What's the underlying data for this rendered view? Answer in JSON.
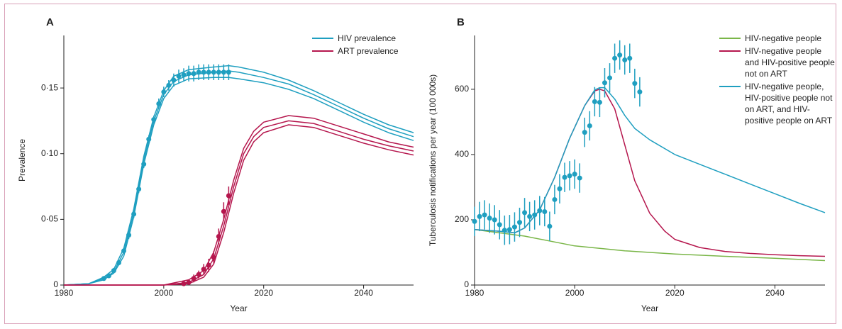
{
  "chart_data": [
    {
      "type": "line",
      "label": "A",
      "xlabel": "Year",
      "ylabel": "Prevalence",
      "xlim": [
        1980,
        2050
      ],
      "xticks": [
        1980,
        2000,
        2020,
        2040
      ],
      "ylim": [
        0,
        0.19
      ],
      "yticks": [
        0,
        {
          "value": 0.05,
          "label": "0·05"
        },
        {
          "value": 0.1,
          "label": "0·10"
        },
        {
          "value": 0.15,
          "label": "0·15"
        }
      ],
      "legend": "upper right",
      "series": [
        {
          "name": "HIV prevalence",
          "color": "#1f9fc0",
          "x": [
            1980,
            1985,
            1988,
            1990,
            1992,
            1994,
            1996,
            1998,
            2000,
            2002,
            2005,
            2010,
            2013,
            2015,
            2020,
            2025,
            2030,
            2035,
            2040,
            2045,
            2050
          ],
          "values": [
            0,
            0.001,
            0.005,
            0.01,
            0.025,
            0.055,
            0.095,
            0.125,
            0.145,
            0.155,
            0.16,
            0.162,
            0.163,
            0.162,
            0.158,
            0.153,
            0.145,
            0.136,
            0.127,
            0.119,
            0.113
          ]
        },
        {
          "color": "#1f9fc0",
          "x": [
            1980,
            1985,
            1988,
            1990,
            1992,
            1994,
            1996,
            1998,
            2000,
            2002,
            2005,
            2010,
            2013,
            2015,
            2020,
            2025,
            2030,
            2035,
            2040,
            2045,
            2050
          ],
          "values": [
            0,
            0.001,
            0.006,
            0.012,
            0.028,
            0.058,
            0.098,
            0.128,
            0.148,
            0.159,
            0.164,
            0.166,
            0.167,
            0.166,
            0.162,
            0.156,
            0.148,
            0.139,
            0.13,
            0.122,
            0.116
          ]
        },
        {
          "color": "#1f9fc0",
          "x": [
            1980,
            1985,
            1988,
            1990,
            1992,
            1994,
            1996,
            1998,
            2000,
            2002,
            2005,
            2010,
            2013,
            2015,
            2020,
            2025,
            2030,
            2035,
            2040,
            2045,
            2050
          ],
          "values": [
            0,
            0.001,
            0.004,
            0.009,
            0.022,
            0.052,
            0.092,
            0.122,
            0.142,
            0.152,
            0.157,
            0.158,
            0.158,
            0.157,
            0.154,
            0.149,
            0.142,
            0.133,
            0.124,
            0.116,
            0.11
          ]
        },
        {
          "name": "ART prevalence",
          "color": "#b5164d",
          "x": [
            1980,
            2000,
            2005,
            2008,
            2010,
            2012,
            2014,
            2016,
            2018,
            2020,
            2025,
            2030,
            2035,
            2040,
            2045,
            2050
          ],
          "values": [
            0,
            0,
            0.002,
            0.008,
            0.02,
            0.045,
            0.075,
            0.1,
            0.113,
            0.12,
            0.125,
            0.123,
            0.117,
            0.111,
            0.106,
            0.102
          ]
        },
        {
          "color": "#b5164d",
          "x": [
            1980,
            2000,
            2005,
            2008,
            2010,
            2012,
            2014,
            2016,
            2018,
            2020,
            2025,
            2030,
            2035,
            2040,
            2045,
            2050
          ],
          "values": [
            0,
            0,
            0.004,
            0.011,
            0.025,
            0.05,
            0.08,
            0.104,
            0.117,
            0.124,
            0.129,
            0.127,
            0.121,
            0.115,
            0.109,
            0.105
          ]
        },
        {
          "color": "#b5164d",
          "x": [
            1980,
            2000,
            2005,
            2008,
            2010,
            2012,
            2014,
            2016,
            2018,
            2020,
            2025,
            2030,
            2035,
            2040,
            2045,
            2050
          ],
          "values": [
            0,
            0,
            0.001,
            0.006,
            0.016,
            0.04,
            0.07,
            0.095,
            0.109,
            0.116,
            0.122,
            0.12,
            0.114,
            0.108,
            0.103,
            0.099
          ]
        },
        {
          "style": "points",
          "color": "#1f9fc0",
          "x": [
            1988,
            1989,
            1990,
            1991,
            1992,
            1993,
            1994,
            1995,
            1996,
            1997,
            1998,
            1999,
            2000,
            2001,
            2002,
            2003,
            2004,
            2005,
            2006,
            2007,
            2008,
            2009,
            2010,
            2011,
            2012,
            2013
          ],
          "values": [
            0.005,
            0.007,
            0.011,
            0.017,
            0.026,
            0.038,
            0.054,
            0.073,
            0.092,
            0.111,
            0.126,
            0.138,
            0.147,
            0.152,
            0.156,
            0.159,
            0.16,
            0.161,
            0.161,
            0.162,
            0.162,
            0.162,
            0.162,
            0.162,
            0.162,
            0.162
          ],
          "errors": [
            0.001,
            0.001,
            0.002,
            0.002,
            0.002,
            0.003,
            0.003,
            0.003,
            0.003,
            0.003,
            0.003,
            0.004,
            0.004,
            0.004,
            0.005,
            0.005,
            0.005,
            0.006,
            0.006,
            0.006,
            0.006,
            0.006,
            0.006,
            0.006,
            0.006,
            0.006
          ]
        },
        {
          "style": "points",
          "color": "#b5164d",
          "x": [
            2004,
            2005,
            2006,
            2007,
            2008,
            2009,
            2010,
            2011,
            2012,
            2013
          ],
          "values": [
            0.001,
            0.002,
            0.005,
            0.008,
            0.012,
            0.015,
            0.021,
            0.037,
            0.056,
            0.068
          ],
          "errors": [
            0.001,
            0.002,
            0.003,
            0.003,
            0.004,
            0.005,
            0.005,
            0.006,
            0.007,
            0.007
          ]
        }
      ]
    },
    {
      "type": "line",
      "label": "B",
      "xlabel": "Year",
      "ylabel": "Tuberculosis notifications per year (100 000s)",
      "xlim": [
        1980,
        2050
      ],
      "xticks": [
        1980,
        2000,
        2020,
        2040
      ],
      "ylim": [
        0,
        765
      ],
      "yticks": [
        0,
        200,
        400,
        600
      ],
      "legend": "upper right",
      "series": [
        {
          "name": "HIV-negative people",
          "color": "#7ab648",
          "x": [
            1980,
            1990,
            2000,
            2010,
            2020,
            2030,
            2040,
            2050
          ],
          "values": [
            170,
            150,
            120,
            105,
            95,
            88,
            82,
            75
          ]
        },
        {
          "name": "HIV-negative people and HIV-positive people not on ART",
          "color": "#b5164d",
          "x": [
            1980,
            1985,
            1988,
            1990,
            1993,
            1996,
            1999,
            2002,
            2004,
            2005,
            2006,
            2008,
            2010,
            2012,
            2015,
            2018,
            2020,
            2025,
            2030,
            2035,
            2040,
            2045,
            2050
          ],
          "values": [
            170,
            165,
            160,
            175,
            230,
            330,
            450,
            550,
            595,
            600,
            595,
            540,
            430,
            320,
            220,
            165,
            140,
            115,
            103,
            97,
            93,
            90,
            88
          ]
        },
        {
          "name": "HIV-negative people, HIV-positive people not on ART, and HIV-positive people on ART",
          "color": "#1f9fc0",
          "x": [
            1980,
            1985,
            1988,
            1990,
            1993,
            1996,
            1999,
            2002,
            2004,
            2005,
            2006,
            2008,
            2010,
            2012,
            2015,
            2020,
            2025,
            2030,
            2035,
            2040,
            2045,
            2050
          ],
          "values": [
            170,
            165,
            160,
            175,
            230,
            330,
            450,
            550,
            598,
            605,
            605,
            570,
            520,
            480,
            445,
            400,
            370,
            340,
            310,
            280,
            250,
            222
          ]
        },
        {
          "style": "points",
          "color": "#1f9fc0",
          "x": [
            1980,
            1981,
            1982,
            1983,
            1984,
            1985,
            1986,
            1987,
            1988,
            1989,
            1990,
            1991,
            1992,
            1993,
            1994,
            1995,
            1996,
            1997,
            1998,
            1999,
            2000,
            2001,
            2002,
            2003,
            2004,
            2005,
            2006,
            2007,
            2008,
            2009,
            2010,
            2011,
            2012,
            2013
          ],
          "values": [
            195,
            210,
            215,
            205,
            200,
            185,
            168,
            170,
            178,
            192,
            222,
            210,
            215,
            228,
            225,
            180,
            262,
            295,
            330,
            335,
            340,
            328,
            468,
            488,
            562,
            560,
            620,
            635,
            695,
            705,
            690,
            695,
            618,
            592
          ],
          "errors": [
            45,
            45,
            45,
            45,
            45,
            45,
            45,
            45,
            45,
            45,
            45,
            45,
            45,
            45,
            45,
            45,
            45,
            45,
            45,
            45,
            45,
            45,
            45,
            45,
            45,
            45,
            45,
            45,
            45,
            45,
            45,
            45,
            45,
            45
          ]
        }
      ]
    }
  ]
}
